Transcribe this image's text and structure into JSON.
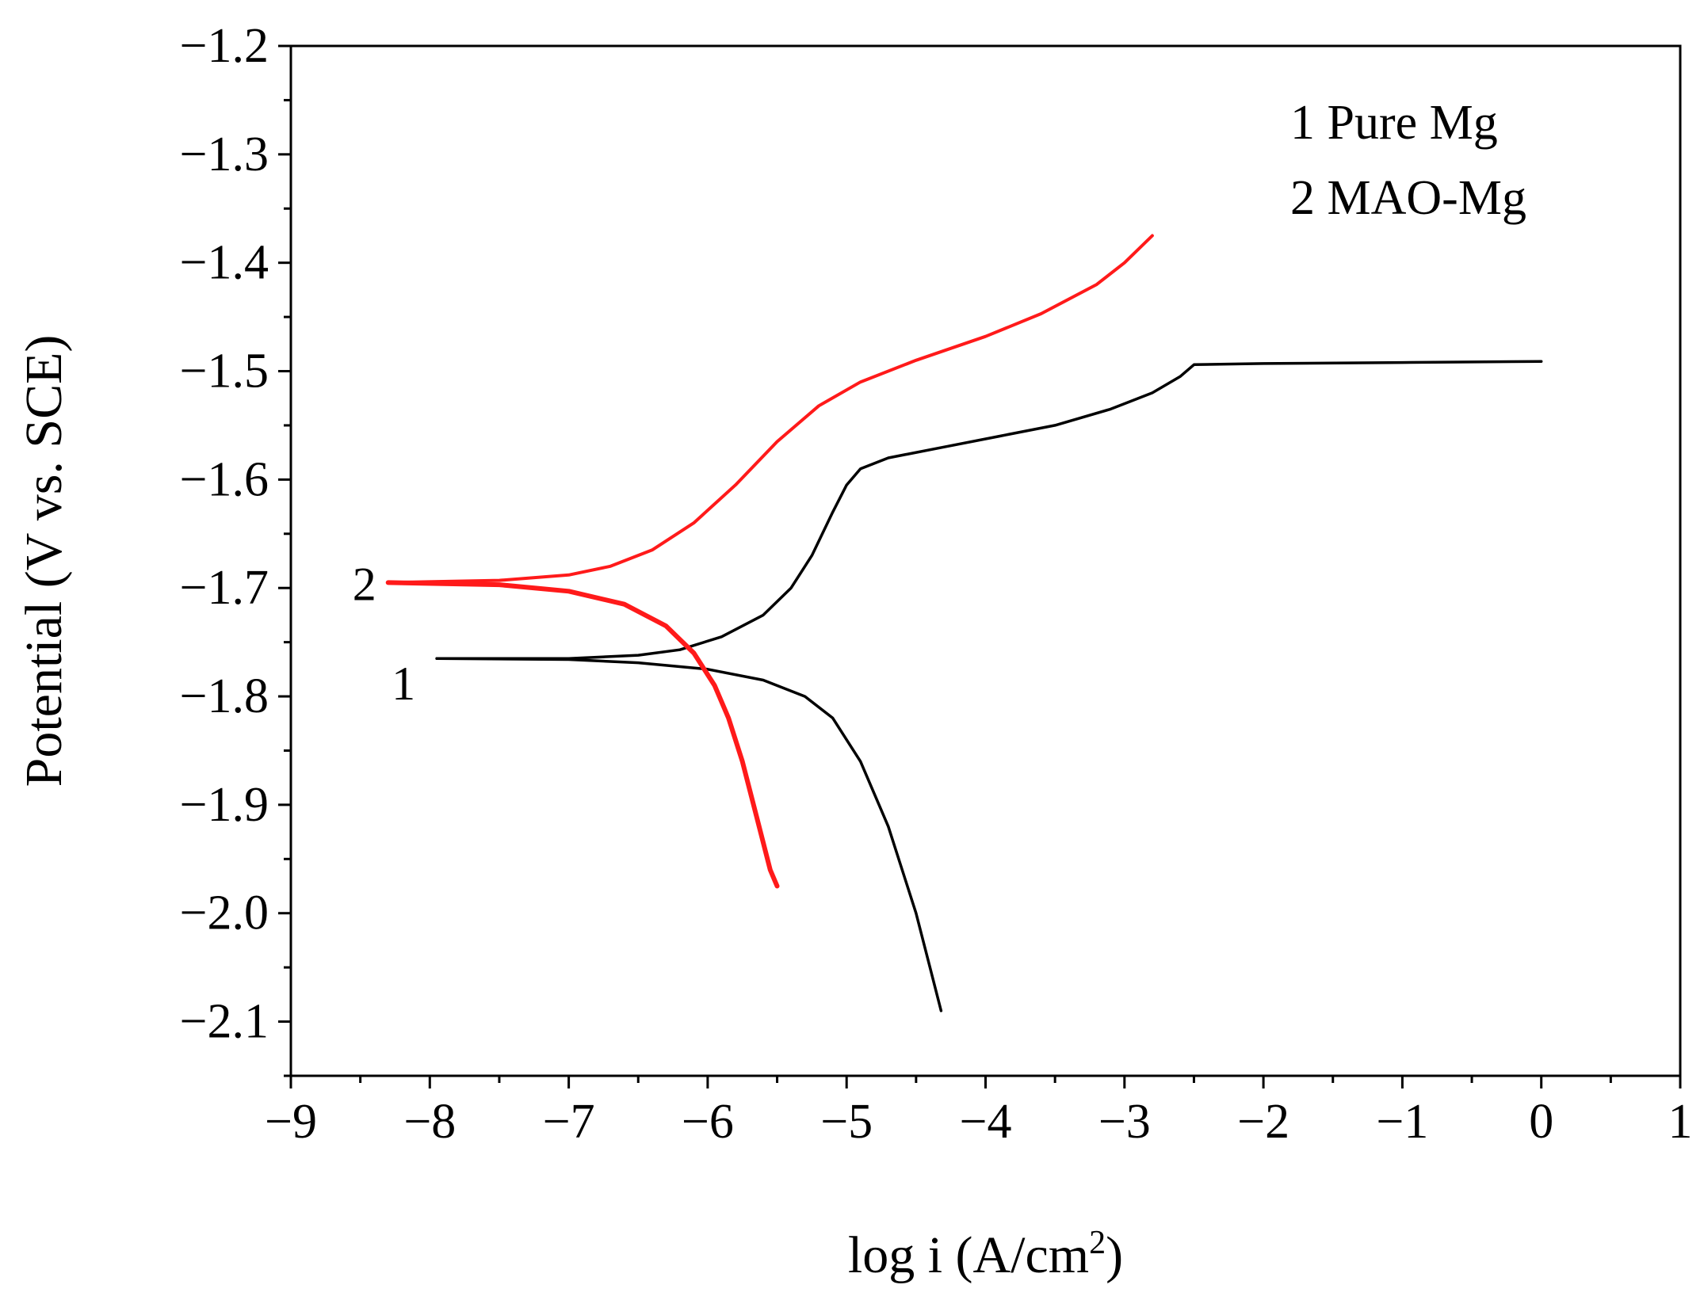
{
  "chart_data": {
    "type": "line",
    "title": "",
    "xlabel": "log i (A/cm",
    "xlabel_sup": "2",
    "xlabel_close": ")",
    "ylabel": "Potential (V vs. SCE)",
    "xlim": [
      -9,
      1
    ],
    "ylim": [
      -2.15,
      -1.2
    ],
    "x_ticks": [
      -9,
      -8,
      -7,
      -6,
      -5,
      -4,
      -3,
      -2,
      -1,
      0,
      1
    ],
    "x_tick_labels": [
      "−9",
      "−8",
      "−7",
      "−6",
      "−5",
      "−4",
      "−3",
      "−2",
      "−1",
      "0",
      "1"
    ],
    "y_ticks": [
      -1.2,
      -1.3,
      -1.4,
      -1.5,
      -1.6,
      -1.7,
      -1.8,
      -1.9,
      -2.0,
      -2.1
    ],
    "y_tick_labels": [
      "−1.2",
      "−1.3",
      "−1.4",
      "−1.5",
      "−1.6",
      "−1.7",
      "−1.8",
      "−1.9",
      "−2.0",
      "−2.1"
    ],
    "legend": {
      "placement": "top-right",
      "entries": [
        "1 Pure Mg",
        "2 MAO-Mg"
      ]
    },
    "series": [
      {
        "name": "1 Pure Mg",
        "label": "1",
        "color": "#000000",
        "anodic": [
          {
            "x": -7.95,
            "y": -1.765
          },
          {
            "x": -7.0,
            "y": -1.765
          },
          {
            "x": -6.5,
            "y": -1.762
          },
          {
            "x": -6.2,
            "y": -1.757
          },
          {
            "x": -5.9,
            "y": -1.745
          },
          {
            "x": -5.6,
            "y": -1.725
          },
          {
            "x": -5.4,
            "y": -1.7
          },
          {
            "x": -5.25,
            "y": -1.67
          },
          {
            "x": -5.1,
            "y": -1.63
          },
          {
            "x": -5.0,
            "y": -1.605
          },
          {
            "x": -4.9,
            "y": -1.59
          },
          {
            "x": -4.7,
            "y": -1.58
          },
          {
            "x": -4.3,
            "y": -1.57
          },
          {
            "x": -3.9,
            "y": -1.56
          },
          {
            "x": -3.5,
            "y": -1.55
          },
          {
            "x": -3.1,
            "y": -1.535
          },
          {
            "x": -2.8,
            "y": -1.52
          },
          {
            "x": -2.6,
            "y": -1.505
          },
          {
            "x": -2.5,
            "y": -1.494
          },
          {
            "x": -2.0,
            "y": -1.493
          },
          {
            "x": -1.0,
            "y": -1.492
          },
          {
            "x": 0.0,
            "y": -1.491
          }
        ],
        "cathodic": [
          {
            "x": -7.95,
            "y": -1.765
          },
          {
            "x": -7.0,
            "y": -1.766
          },
          {
            "x": -6.5,
            "y": -1.769
          },
          {
            "x": -6.0,
            "y": -1.775
          },
          {
            "x": -5.6,
            "y": -1.785
          },
          {
            "x": -5.3,
            "y": -1.8
          },
          {
            "x": -5.1,
            "y": -1.82
          },
          {
            "x": -4.9,
            "y": -1.86
          },
          {
            "x": -4.7,
            "y": -1.92
          },
          {
            "x": -4.5,
            "y": -2.0
          },
          {
            "x": -4.4,
            "y": -2.05
          },
          {
            "x": -4.32,
            "y": -2.09
          }
        ]
      },
      {
        "name": "2 MAO-Mg",
        "label": "2",
        "color": "#ff1a1a",
        "anodic": [
          {
            "x": -8.3,
            "y": -1.695
          },
          {
            "x": -7.5,
            "y": -1.693
          },
          {
            "x": -7.0,
            "y": -1.688
          },
          {
            "x": -6.7,
            "y": -1.68
          },
          {
            "x": -6.4,
            "y": -1.665
          },
          {
            "x": -6.1,
            "y": -1.64
          },
          {
            "x": -5.8,
            "y": -1.605
          },
          {
            "x": -5.5,
            "y": -1.565
          },
          {
            "x": -5.2,
            "y": -1.532
          },
          {
            "x": -4.9,
            "y": -1.51
          },
          {
            "x": -4.5,
            "y": -1.49
          },
          {
            "x": -4.0,
            "y": -1.468
          },
          {
            "x": -3.6,
            "y": -1.447
          },
          {
            "x": -3.2,
            "y": -1.42
          },
          {
            "x": -3.0,
            "y": -1.4
          },
          {
            "x": -2.8,
            "y": -1.375
          }
        ],
        "cathodic": [
          {
            "x": -8.3,
            "y": -1.695
          },
          {
            "x": -7.5,
            "y": -1.697
          },
          {
            "x": -7.0,
            "y": -1.703
          },
          {
            "x": -6.6,
            "y": -1.715
          },
          {
            "x": -6.3,
            "y": -1.735
          },
          {
            "x": -6.1,
            "y": -1.76
          },
          {
            "x": -5.95,
            "y": -1.79
          },
          {
            "x": -5.85,
            "y": -1.82
          },
          {
            "x": -5.75,
            "y": -1.86
          },
          {
            "x": -5.65,
            "y": -1.91
          },
          {
            "x": -5.55,
            "y": -1.96
          },
          {
            "x": -5.5,
            "y": -1.975
          }
        ]
      }
    ]
  }
}
